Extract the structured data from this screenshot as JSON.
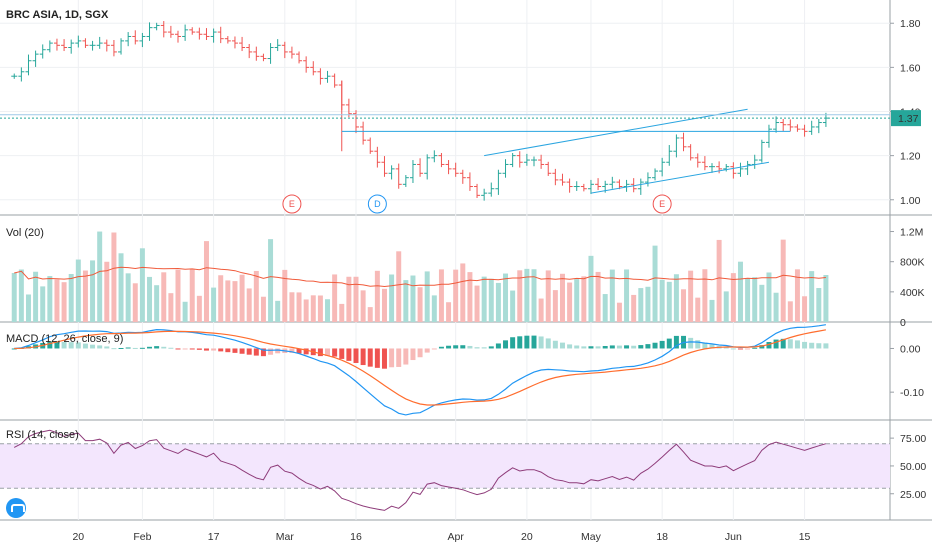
{
  "chart_data": {
    "type": "candlestick",
    "title": "BRC ASIA, 1D, SGX",
    "last_price": "1.37",
    "x_tick_labels": [
      {
        "label": "20",
        "t": 9
      },
      {
        "label": "Feb",
        "t": 18
      },
      {
        "label": "17",
        "t": 28
      },
      {
        "label": "Mar",
        "t": 38
      },
      {
        "label": "16",
        "t": 48
      },
      {
        "label": "Apr",
        "t": 62
      },
      {
        "label": "20",
        "t": 72
      },
      {
        "label": "May",
        "t": 81
      },
      {
        "label": "18",
        "t": 91
      },
      {
        "label": "Jun",
        "t": 101
      },
      {
        "label": "15",
        "t": 111
      }
    ],
    "colors": {
      "up": "#26a69a",
      "down": "#ef5350",
      "up_light": "#a9dcd6",
      "down_light": "#f7b9b7",
      "ma": "#f05a3a",
      "macd": "#2196f3",
      "signal": "#ff6d2e",
      "rsi": "#8e3c7a",
      "rsi_band": "#f3e6fd",
      "trend": "#2aa5e0"
    },
    "price_panel": {
      "ylim": [
        0.94,
        1.86
      ],
      "ticks": [
        "1.80",
        "1.60",
        "1.40",
        "1.20",
        "1.00"
      ],
      "closes": [
        1.56,
        1.58,
        1.63,
        1.66,
        1.68,
        1.71,
        1.7,
        1.69,
        1.71,
        1.72,
        1.7,
        1.7,
        1.71,
        1.7,
        1.67,
        1.72,
        1.74,
        1.72,
        1.74,
        1.78,
        1.79,
        1.76,
        1.75,
        1.74,
        1.77,
        1.76,
        1.75,
        1.74,
        1.76,
        1.73,
        1.72,
        1.71,
        1.69,
        1.67,
        1.65,
        1.64,
        1.69,
        1.7,
        1.67,
        1.66,
        1.63,
        1.6,
        1.58,
        1.55,
        1.56,
        1.52,
        1.43,
        1.39,
        1.33,
        1.27,
        1.22,
        1.17,
        1.12,
        1.14,
        1.07,
        1.1,
        1.16,
        1.12,
        1.19,
        1.2,
        1.16,
        1.14,
        1.12,
        1.1,
        1.06,
        1.02,
        1.03,
        1.05,
        1.12,
        1.16,
        1.2,
        1.17,
        1.18,
        1.18,
        1.16,
        1.12,
        1.09,
        1.08,
        1.06,
        1.06,
        1.05,
        1.07,
        1.06,
        1.07,
        1.08,
        1.06,
        1.07,
        1.05,
        1.08,
        1.1,
        1.13,
        1.17,
        1.22,
        1.28,
        1.24,
        1.19,
        1.17,
        1.15,
        1.15,
        1.14,
        1.15,
        1.12,
        1.14,
        1.16,
        1.18,
        1.26,
        1.32,
        1.35,
        1.34,
        1.33,
        1.32,
        1.31,
        1.33,
        1.35,
        1.37
      ],
      "event_markers": [
        {
          "label": "E",
          "t": 39,
          "color": "#ef5350"
        },
        {
          "label": "D",
          "t": 51,
          "color": "#2196f3"
        },
        {
          "label": "E",
          "t": 91,
          "color": "#ef5350"
        }
      ]
    },
    "volume_panel": {
      "title": "Vol (20)",
      "ticks": [
        "1.2M",
        "800K",
        "400K",
        "0"
      ],
      "ylim": [
        0,
        1300000
      ]
    },
    "macd_panel": {
      "title": "MACD (12, 26, close, 9)",
      "ticks": [
        "0.00",
        "-0.10"
      ],
      "ylim": [
        -0.15,
        0.04
      ]
    },
    "rsi_panel": {
      "title": "RSI (14, close)",
      "ticks": [
        "75.00",
        "50.00",
        "25.00"
      ],
      "ylim": [
        5,
        85
      ],
      "band": [
        30,
        70
      ]
    }
  }
}
